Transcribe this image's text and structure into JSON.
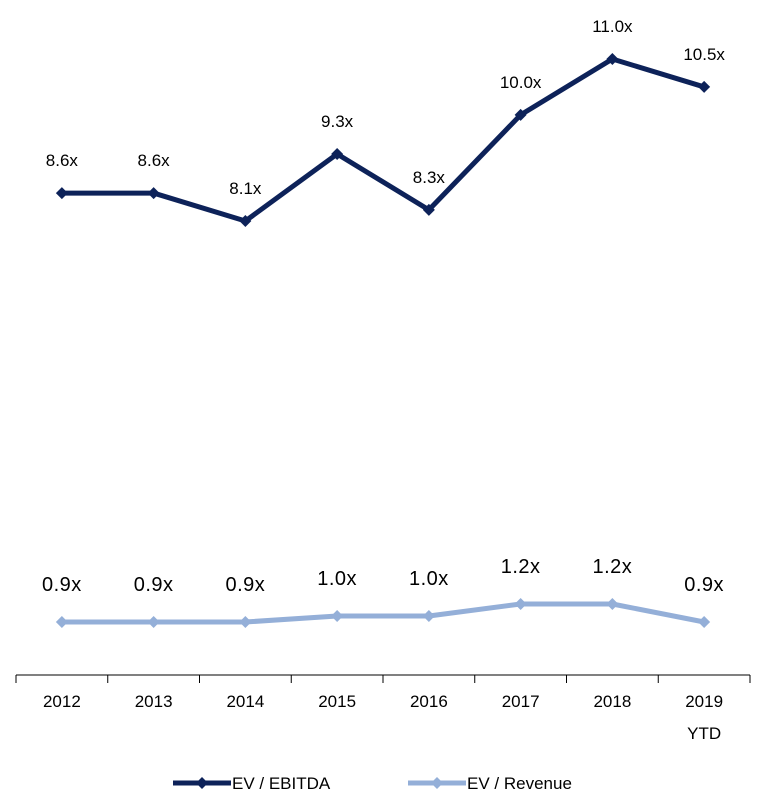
{
  "chart_data": {
    "type": "line",
    "categories": [
      "2012",
      "2013",
      "2014",
      "2015",
      "2016",
      "2017",
      "2018",
      "2019 YTD"
    ],
    "category_lines": [
      [
        "2012"
      ],
      [
        "2013"
      ],
      [
        "2014"
      ],
      [
        "2015"
      ],
      [
        "2016"
      ],
      [
        "2017"
      ],
      [
        "2018"
      ],
      [
        "2019",
        "YTD"
      ]
    ],
    "series": [
      {
        "name": "EV / EBITDA",
        "values": [
          8.6,
          8.6,
          8.1,
          9.3,
          8.3,
          10.0,
          11.0,
          10.5
        ],
        "labels": [
          "8.6x",
          "8.6x",
          "8.1x",
          "9.3x",
          "8.3x",
          "10.0x",
          "11.0x",
          "10.5x"
        ],
        "color": "#0d2259"
      },
      {
        "name": "EV / Revenue",
        "values": [
          0.9,
          0.9,
          0.9,
          1.0,
          1.0,
          1.2,
          1.2,
          0.9
        ],
        "labels": [
          "0.9x",
          "0.9x",
          "0.9x",
          "1.0x",
          "1.0x",
          "1.2x",
          "1.2x",
          "0.9x"
        ],
        "color": "#94afd8"
      }
    ],
    "marker": "diamond",
    "grid": false,
    "legend_position": "bottom"
  }
}
